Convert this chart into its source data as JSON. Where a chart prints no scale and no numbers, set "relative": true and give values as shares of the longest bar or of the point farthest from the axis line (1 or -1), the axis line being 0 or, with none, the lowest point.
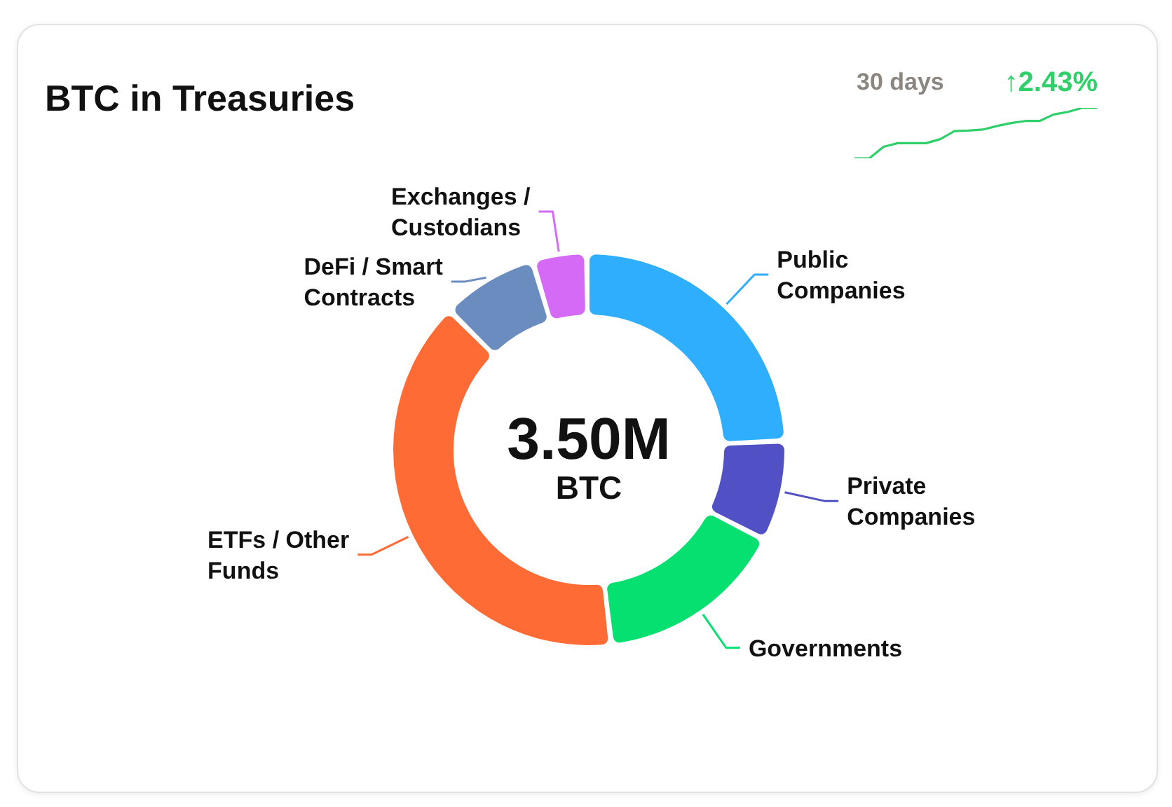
{
  "chart_data": [
    {
      "type": "donut",
      "title": "BTC in Treasuries",
      "categories": [
        "Public Companies",
        "Private Companies",
        "Governments",
        "ETFs / Other Funds",
        "DeFi / Smart Contracts",
        "Exchanges / Custodians"
      ],
      "values": [
        24.6,
        8.1,
        15.6,
        39.8,
        7.7,
        4.2
      ],
      "colors": [
        "#2eaefc",
        "#5150c4",
        "#05e070",
        "#ff6b35",
        "#6b8cbf",
        "#d46af5"
      ],
      "annotations": [
        "3.50M",
        "BTC"
      ]
    },
    {
      "type": "line",
      "relative": true,
      "categories": [
        null,
        null,
        null,
        null,
        null,
        null,
        null,
        null,
        null,
        null,
        null,
        null,
        null,
        null,
        null,
        null,
        null,
        null
      ],
      "series": [
        {
          "color": "#2fd06a",
          "values": [
            0,
            0,
            0.23,
            0.3,
            0.3,
            0.3,
            0.38,
            0.54,
            0.55,
            0.57,
            0.64,
            0.7,
            0.74,
            0.74,
            0.87,
            0.92,
            1,
            1
          ]
        }
      ],
      "annotations": [
        "30 days",
        "↑2.43%"
      ]
    }
  ]
}
